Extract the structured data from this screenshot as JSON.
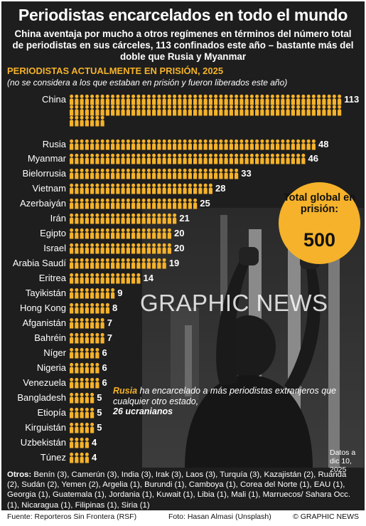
{
  "header": {
    "title": "Periodistas encarcelados en todo el mundo",
    "subtitle": "China aventaja por mucho a otros regímenes en términos del número total de periodistas en sus cárceles, 113 confinados este año – bastante más del doble que Rusia y Myanmar"
  },
  "section_title": "PERIODISTAS ACTUALMENTE EN PRISIÓN, 2025",
  "section_note": "(no se considera a los que estaban en prisión y fueron liberados este año)",
  "chart_data": {
    "type": "bar",
    "title": "PERIODISTAS ACTUALMENTE EN PRISIÓN, 2025",
    "categories": [
      "China",
      "Rusia",
      "Myanmar",
      "Bielorrusia",
      "Vietnam",
      "Azerbaiyán",
      "Irán",
      "Egipto",
      "Israel",
      "Arabia Saudí",
      "Eritrea",
      "Tayikistán",
      "Hong Kong",
      "Afganistán",
      "Bahréin",
      "Níger",
      "Nigeria",
      "Venezuela",
      "Bangladesh",
      "Etiopía",
      "Kirguistán",
      "Uzbekistán",
      "Túnez"
    ],
    "values": [
      113,
      48,
      46,
      33,
      28,
      25,
      21,
      20,
      20,
      19,
      14,
      9,
      8,
      7,
      7,
      6,
      6,
      6,
      5,
      5,
      5,
      4,
      4
    ],
    "value_labels": [
      "113",
      "48",
      "46",
      "33",
      "28",
      "25",
      "21",
      "20",
      "20",
      "19",
      "14",
      "9",
      "8",
      "7",
      "7",
      "6",
      "6",
      "6",
      "5",
      "5",
      "5",
      "4",
      "4"
    ],
    "xlabel": "",
    "ylabel": "",
    "icon": "person-icon",
    "icon_color": "#f5b22a"
  },
  "badge": {
    "text": "Total global en prisión:",
    "value": "500"
  },
  "logo_text": "GRAPHIC NEWS",
  "callout": {
    "country": "Rusia",
    "text": " ha encarcelado a más periodistas extranjeros que cualquier otro estado,",
    "highlight": "26 ucranianos"
  },
  "dates": "Datos a dic 10, 2025",
  "others": {
    "label": "Otros:",
    "text": " Benín (3), Camerún (3), India (3), Irak (3), Laos (3), Turquía (3), Kazajistán (2), Ruanda (2), Sudán (2), Yemen (2), Argelia (1), Burundi (1), Camboya (1), Corea del Norte (1), EAU (1), Georgia (1), Guatemala (1), Jordania (1), Kuwait (1), Libia (1), Mali (1), Marruecos/ Sahara Occ. (1), Nicaragua (1), Filipinas (1), Siria (1)"
  },
  "footer": {
    "source": "Fuente: Reporteros Sin Frontera (RSF)",
    "photo": "Foto: Hasan Almasi (Unsplash)",
    "copyright": "© GRAPHIC NEWS"
  },
  "colors": {
    "accent": "#f5b22a",
    "background": "#1e1e1e"
  }
}
